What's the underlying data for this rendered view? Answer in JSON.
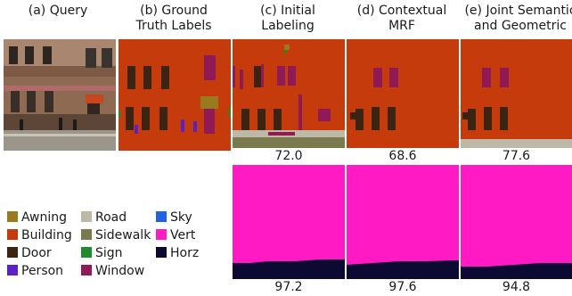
{
  "headers": [
    "(a) Query",
    "(b) Ground\nTruth Labels",
    "(c) Initial\nLabeling",
    "(d) Contextual\nMRF",
    "(e) Joint Semantic\nand Geometric"
  ],
  "semantic_scores": [
    "72.0",
    "68.6",
    "77.6"
  ],
  "geometric_scores": [
    "97.2",
    "97.6",
    "94.8"
  ],
  "legend": [
    {
      "label": "Awning",
      "color": "#9a7a1e"
    },
    {
      "label": "Building",
      "color": "#c63b0c"
    },
    {
      "label": "Door",
      "color": "#3c2412"
    },
    {
      "label": "Person",
      "color": "#5a22c4"
    },
    {
      "label": "Road",
      "color": "#bdb9a6"
    },
    {
      "label": "Sidewalk",
      "color": "#7a7a4e"
    },
    {
      "label": "Sign",
      "color": "#1f8a2e"
    },
    {
      "label": "Window",
      "color": "#8f1a55"
    },
    {
      "label": "Sky",
      "color": "#1f62e6"
    },
    {
      "label": "Vert",
      "color": "#ff1ac4"
    },
    {
      "label": "Horz",
      "color": "#0c0a33"
    }
  ]
}
